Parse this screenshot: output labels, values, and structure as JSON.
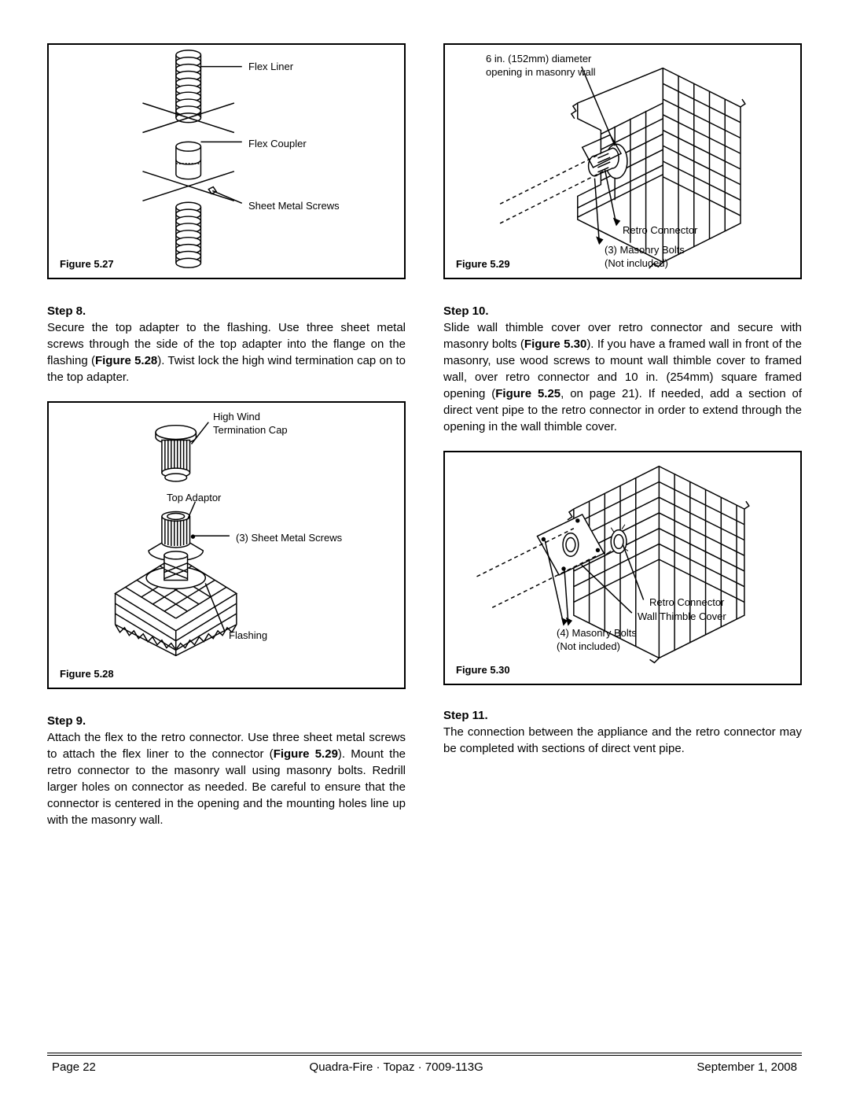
{
  "figures": {
    "f527": {
      "caption": "Figure 5.27",
      "labels": {
        "flex_liner": "Flex Liner",
        "flex_coupler": "Flex Coupler",
        "sheet_screws": "Sheet Metal Screws"
      }
    },
    "f528": {
      "caption": "Figure 5.28",
      "labels": {
        "high_wind": "High Wind\nTermination Cap",
        "top_adaptor": "Top Adaptor",
        "screws3": "(3) Sheet Metal Screws",
        "flashing": "Flashing"
      }
    },
    "f529": {
      "caption": "Figure 5.29",
      "labels": {
        "opening": "6 in. (152mm) diameter\nopening in masonry wall",
        "retro": "Retro Connector",
        "bolts3": "(3) Masonry Bolts\n(Not included)"
      }
    },
    "f530": {
      "caption": "Figure 5.30",
      "labels": {
        "retro": "Retro Connector",
        "thimble": "Wall Thimble Cover",
        "bolts4": "(4) Masonry Bolts\n(Not included)"
      }
    }
  },
  "steps": {
    "s8": {
      "head": "Step 8.",
      "text": "Secure the top adapter to the flashing. Use three sheet metal screws through the side of the top adapter into the flange on the flashing (<b>Figure 5.28</b>). Twist lock the high wind termination cap on to the top adapter."
    },
    "s9": {
      "head": "Step 9.",
      "text": "Attach the flex to the retro connector. Use three sheet metal screws to attach the flex liner to the connector (<b>Figure 5.29</b>). Mount the retro connector to the masonry wall using masonry bolts. Redrill larger holes on connector as needed. Be careful to ensure that the connector is centered in the opening and the mounting holes line up with the masonry wall."
    },
    "s10": {
      "head": "Step 10.",
      "text": "Slide wall thimble cover over retro connector and secure with masonry bolts (<b>Figure 5.30</b>). If you have a framed wall in front of the masonry, use wood screws to mount wall thimble cover to framed wall, over retro connector and 10 in. (254mm) square framed opening (<b>Figure 5.25</b>, on page 21). If needed, add a section of direct vent pipe to the retro connector in order to extend through the opening in the wall thimble cover."
    },
    "s11": {
      "head": "Step 11.",
      "text": "The connection between the appliance and the retro connector may be completed with sections of direct vent pipe."
    }
  },
  "footer": {
    "page": "Page  22",
    "center": "Quadra-Fire · Topaz · 7009-113G",
    "date": "September 1, 2008"
  },
  "style": {
    "stroke": "#000000",
    "bg": "#ffffff",
    "font_body": 15,
    "font_label": 13
  }
}
